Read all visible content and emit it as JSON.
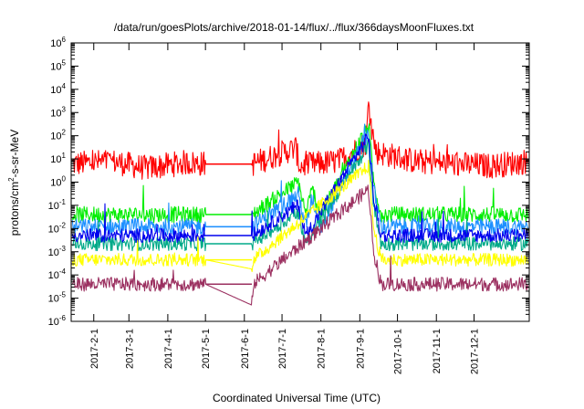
{
  "chart_data": {
    "type": "line",
    "title": "/data/run/goesPlots/archive/2018-01-14/flux/../flux/366daysMoonFluxes.txt",
    "xlabel": "Coordinated Universal Time (UTC)",
    "ylabel": {
      "prefix": "protons/cm",
      "sup": "2",
      "suffix": "-s-sr-MeV"
    },
    "x_type": "date",
    "xlim": [
      "2017-01-14",
      "2018-01-14"
    ],
    "x_ticks": [
      "2017-2-1",
      "2017-3-1",
      "2017-4-1",
      "2017-5-1",
      "2017-6-1",
      "2017-7-1",
      "2017-8-1",
      "2017-9-1",
      "2017-10-1",
      "2017-11-1",
      "2017-12-1"
    ],
    "y_scale": "log",
    "ylim": [
      1e-06,
      1000000.0
    ],
    "y_ticks": [
      {
        "base": "10",
        "exp": "-6"
      },
      {
        "base": "10",
        "exp": "-5"
      },
      {
        "base": "10",
        "exp": "-4"
      },
      {
        "base": "10",
        "exp": "-3"
      },
      {
        "base": "10",
        "exp": "-2"
      },
      {
        "base": "10",
        "exp": "-1"
      },
      {
        "base": "10",
        "exp": "0"
      },
      {
        "base": "10",
        "exp": "1"
      },
      {
        "base": "10",
        "exp": "2"
      },
      {
        "base": "10",
        "exp": "3"
      },
      {
        "base": "10",
        "exp": "4"
      },
      {
        "base": "10",
        "exp": "5"
      },
      {
        "base": "10",
        "exp": "6"
      }
    ],
    "grid": false,
    "legend": "none",
    "data_gap": [
      "2017-05-01",
      "2017-06-07"
    ],
    "series": [
      {
        "color": "#ff0000",
        "base": 6,
        "noise": 0.55,
        "values": [
          [
            "2017-01-15",
            6
          ],
          [
            "2017-02-15",
            8
          ],
          [
            "2017-03-15",
            4
          ],
          [
            "2017-04-15",
            7
          ],
          [
            "2017-05-01",
            6
          ],
          [
            "2017-06-07",
            6
          ],
          [
            "2017-07-12",
            30
          ],
          [
            "2017-07-15",
            5
          ],
          [
            "2017-08-15",
            8
          ],
          [
            "2017-09-06",
            50
          ],
          [
            "2017-09-08",
            3000
          ],
          [
            "2017-09-10",
            300
          ],
          [
            "2017-09-14",
            20
          ],
          [
            "2017-10-15",
            8
          ],
          [
            "2017-11-15",
            6
          ],
          [
            "2017-12-15",
            5
          ],
          [
            "2018-01-13",
            8
          ]
        ]
      },
      {
        "color": "#00ee00",
        "base": 0.04,
        "noise": 0.35,
        "values": [
          [
            "2017-01-15",
            0.04
          ],
          [
            "2017-05-01",
            0.04
          ],
          [
            "2017-06-07",
            0.04
          ],
          [
            "2017-07-14",
            1
          ],
          [
            "2017-07-20",
            0.04
          ],
          [
            "2017-07-25",
            0.5
          ],
          [
            "2017-08-01",
            0.04
          ],
          [
            "2017-09-08",
            300
          ],
          [
            "2017-09-12",
            1
          ],
          [
            "2017-09-18",
            0.04
          ],
          [
            "2018-01-13",
            0.04
          ]
        ]
      },
      {
        "color": "#1e90ff",
        "base": 0.012,
        "noise": 0.35,
        "values": [
          [
            "2017-01-15",
            0.012
          ],
          [
            "2017-05-01",
            0.012
          ],
          [
            "2017-06-07",
            0.012
          ],
          [
            "2017-07-14",
            0.3
          ],
          [
            "2017-07-20",
            0.012
          ],
          [
            "2017-07-25",
            0.2
          ],
          [
            "2017-08-01",
            0.012
          ],
          [
            "2017-09-08",
            150
          ],
          [
            "2017-09-12",
            0.5
          ],
          [
            "2017-09-18",
            0.012
          ],
          [
            "2018-01-13",
            0.012
          ]
        ]
      },
      {
        "color": "#00aa88",
        "base": 0.0022,
        "noise": 0.3,
        "values": [
          [
            "2017-01-15",
            0.0022
          ],
          [
            "2017-05-01",
            0.0022
          ],
          [
            "2017-06-07",
            0.0022
          ],
          [
            "2017-07-14",
            0.05
          ],
          [
            "2017-07-20",
            0.0022
          ],
          [
            "2017-09-08",
            40
          ],
          [
            "2017-09-12",
            0.1
          ],
          [
            "2017-09-18",
            0.0022
          ],
          [
            "2018-01-13",
            0.0022
          ]
        ]
      },
      {
        "color": "#0000ee",
        "base": 0.005,
        "noise": 0.3,
        "values": [
          [
            "2017-01-15",
            0.005
          ],
          [
            "2017-05-01",
            0.005
          ],
          [
            "2017-06-07",
            0.005
          ],
          [
            "2017-07-14",
            0.1
          ],
          [
            "2017-07-20",
            0.005
          ],
          [
            "2017-09-08",
            100
          ],
          [
            "2017-09-12",
            0.2
          ],
          [
            "2017-09-18",
            0.005
          ],
          [
            "2018-01-13",
            0.005
          ]
        ]
      },
      {
        "color": "#ffff00",
        "base": 0.00045,
        "noise": 0.28,
        "values": [
          [
            "2017-01-15",
            0.00045
          ],
          [
            "2017-05-01",
            0.00045
          ],
          [
            "2017-06-07",
            0.00018
          ],
          [
            "2017-06-08",
            0.00045
          ],
          [
            "2017-09-08",
            5
          ],
          [
            "2017-09-12",
            0.01
          ],
          [
            "2017-09-18",
            0.00045
          ],
          [
            "2018-01-13",
            0.00045
          ]
        ]
      },
      {
        "color": "#9b3060",
        "base": 4e-05,
        "noise": 0.3,
        "values": [
          [
            "2017-01-15",
            4e-05
          ],
          [
            "2017-05-01",
            4e-05
          ],
          [
            "2017-06-07",
            5e-06
          ],
          [
            "2017-06-08",
            4e-05
          ],
          [
            "2017-09-08",
            0.5
          ],
          [
            "2017-09-12",
            0.001
          ],
          [
            "2017-09-18",
            4e-05
          ],
          [
            "2018-01-13",
            4e-05
          ]
        ]
      }
    ]
  }
}
